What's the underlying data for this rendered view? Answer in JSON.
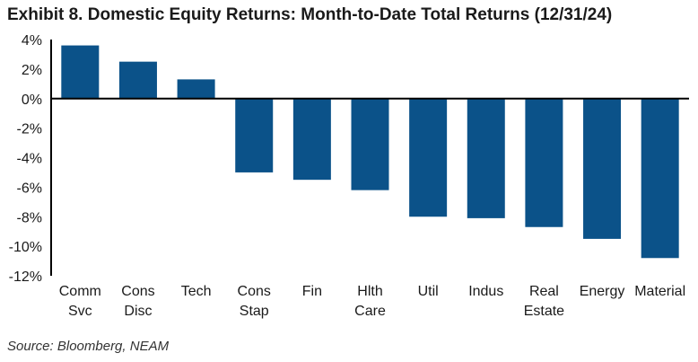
{
  "title": "Exhibit 8. Domestic Equity Returns: Month-to-Date Total Returns (12/31/24)",
  "source": "Source: Bloomberg, NEAM",
  "colors": {
    "bar": "#0b5289",
    "axis": "#000000"
  },
  "chart_data": {
    "type": "bar",
    "categories": [
      [
        "Comm",
        "Svc"
      ],
      [
        "Cons",
        "Disc"
      ],
      [
        "Tech"
      ],
      [
        "Cons",
        "Stap"
      ],
      [
        "Fin"
      ],
      [
        "Hlth",
        "Care"
      ],
      [
        "Util"
      ],
      [
        "Indus"
      ],
      [
        "Real",
        "Estate"
      ],
      [
        "Energy"
      ],
      [
        "Material"
      ]
    ],
    "values": [
      3.6,
      2.5,
      1.3,
      -5.0,
      -5.5,
      -6.2,
      -8.0,
      -8.1,
      -8.7,
      -9.5,
      -10.8
    ],
    "ylim": [
      -12,
      4
    ],
    "yticks": [
      4,
      2,
      0,
      -2,
      -4,
      -6,
      -8,
      -10,
      -12
    ],
    "ytick_labels": [
      "4%",
      "2%",
      "0%",
      "-2%",
      "-4%",
      "-6%",
      "-8%",
      "-10%",
      "-12%"
    ],
    "xlabel": "",
    "ylabel": "",
    "grid": false,
    "legend": "none"
  }
}
